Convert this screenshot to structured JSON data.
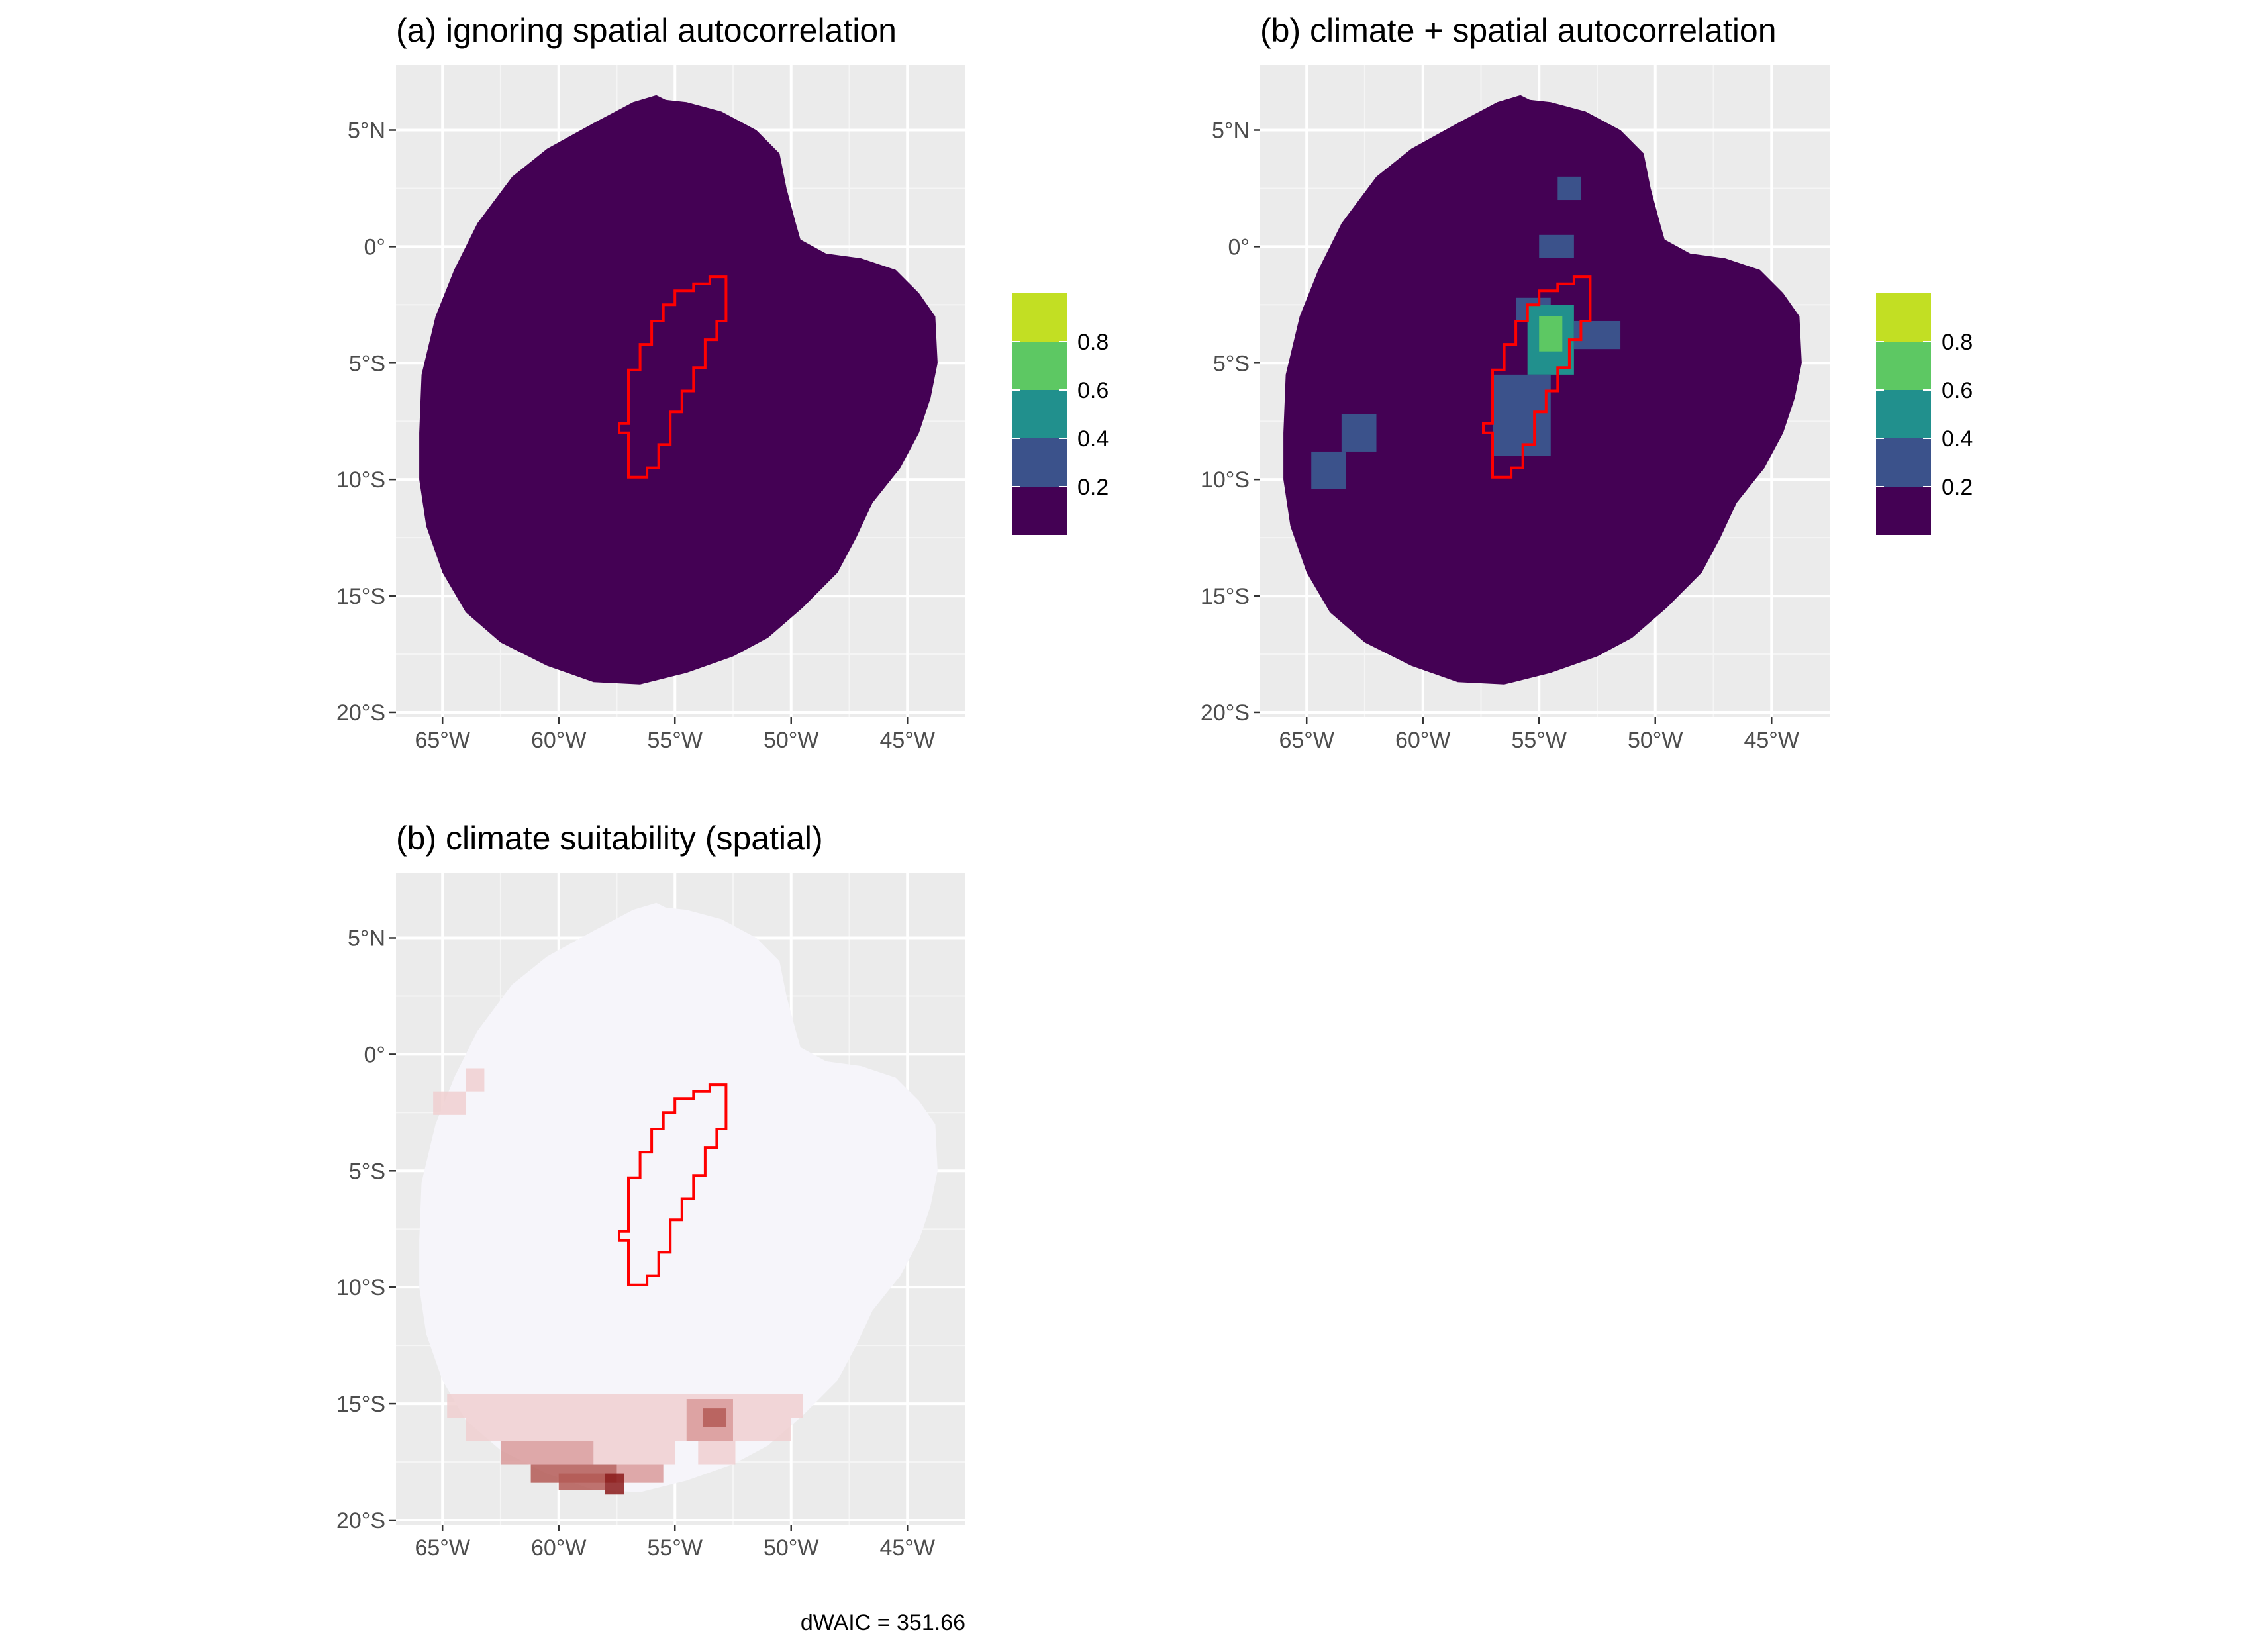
{
  "chart_data": [
    {
      "type": "heatmap",
      "title": "(a) ignoring spatial autocorrelation",
      "xlim": [
        -67,
        -42.5
      ],
      "ylim": [
        -20.2,
        7.8
      ],
      "x_ticks": [
        {
          "value": -65,
          "label": "65°W"
        },
        {
          "value": -60,
          "label": "60°W"
        },
        {
          "value": -55,
          "label": "55°W"
        },
        {
          "value": -50,
          "label": "50°W"
        },
        {
          "value": -45,
          "label": "45°W"
        }
      ],
      "y_ticks": [
        {
          "value": 5,
          "label": "5°N"
        },
        {
          "value": 0,
          "label": "0°"
        },
        {
          "value": -5,
          "label": "5°S"
        },
        {
          "value": -10,
          "label": "10°S"
        },
        {
          "value": -15,
          "label": "15°S"
        },
        {
          "value": -20,
          "label": "20°S"
        }
      ],
      "fill": "#440154",
      "grid": true,
      "legend": {
        "position": "right",
        "colors": [
          "#440154",
          "#3b528b",
          "#21908d",
          "#5dc863",
          "#c2df23"
        ],
        "labels": [
          "0.2",
          "0.4",
          "0.6",
          "0.8"
        ]
      },
      "outline_color": "#ff0000"
    },
    {
      "type": "heatmap",
      "title": "(b) climate + spatial autocorrelation",
      "xlim": [
        -67,
        -42.5
      ],
      "ylim": [
        -20.2,
        7.8
      ],
      "x_ticks": [
        {
          "value": -65,
          "label": "65°W"
        },
        {
          "value": -60,
          "label": "60°W"
        },
        {
          "value": -55,
          "label": "55°W"
        },
        {
          "value": -50,
          "label": "50°W"
        },
        {
          "value": -45,
          "label": "45°W"
        }
      ],
      "y_ticks": [
        {
          "value": 5,
          "label": "5°N"
        },
        {
          "value": 0,
          "label": "0°"
        },
        {
          "value": -5,
          "label": "5°S"
        },
        {
          "value": -10,
          "label": "10°S"
        },
        {
          "value": -15,
          "label": "15°S"
        },
        {
          "value": -20,
          "label": "20°S"
        }
      ],
      "fill": "#440154",
      "grid": true,
      "legend": {
        "position": "right",
        "colors": [
          "#440154",
          "#3b528b",
          "#21908d",
          "#5dc863",
          "#c2df23"
        ],
        "labels": [
          "0.2",
          "0.4",
          "0.6",
          "0.8"
        ]
      },
      "outline_color": "#ff0000",
      "patches": [
        {
          "lon": [
            -54.2,
            -53.2
          ],
          "lat": [
            3.0,
            2.0
          ],
          "class": "0.2-0.4"
        },
        {
          "lon": [
            -55.0,
            -53.5
          ],
          "lat": [
            0.5,
            -0.5
          ],
          "class": "0.2-0.4"
        },
        {
          "lon": [
            -56.0,
            -54.5
          ],
          "lat": [
            -2.2,
            -3.2
          ],
          "class": "0.2-0.4"
        },
        {
          "lon": [
            -55.5,
            -53.5
          ],
          "lat": [
            -2.5,
            -5.5
          ],
          "class": "0.4-0.6"
        },
        {
          "lon": [
            -55.0,
            -54.0
          ],
          "lat": [
            -3.0,
            -4.5
          ],
          "class": "0.6-0.8"
        },
        {
          "lon": [
            -53.5,
            -51.5
          ],
          "lat": [
            -3.2,
            -4.4
          ],
          "class": "0.2-0.4"
        },
        {
          "lon": [
            -57.0,
            -54.5
          ],
          "lat": [
            -5.5,
            -9.0
          ],
          "class": "0.2-0.4"
        },
        {
          "lon": [
            -63.5,
            -62.0
          ],
          "lat": [
            -7.2,
            -8.8
          ],
          "class": "0.2-0.4"
        },
        {
          "lon": [
            -64.8,
            -63.3
          ],
          "lat": [
            -8.8,
            -10.4
          ],
          "class": "0.2-0.4"
        }
      ]
    },
    {
      "type": "heatmap",
      "title": "(b) climate suitability (spatial)",
      "xlim": [
        -67,
        -42.5
      ],
      "ylim": [
        -20.2,
        7.8
      ],
      "x_ticks": [
        {
          "value": -65,
          "label": "65°W"
        },
        {
          "value": -60,
          "label": "60°W"
        },
        {
          "value": -55,
          "label": "55°W"
        },
        {
          "value": -50,
          "label": "50°W"
        },
        {
          "value": -45,
          "label": "45°W"
        }
      ],
      "y_ticks": [
        {
          "value": 5,
          "label": "5°N"
        },
        {
          "value": 0,
          "label": "0°"
        },
        {
          "value": -5,
          "label": "5°S"
        },
        {
          "value": -10,
          "label": "10°S"
        },
        {
          "value": -15,
          "label": "15°S"
        },
        {
          "value": -20,
          "label": "20°S"
        }
      ],
      "fill": "#f6f5fa",
      "grid": true,
      "outline_color": "#ff0000",
      "warm_colors": [
        "#f0cfd0",
        "#d99a9a",
        "#b45a56",
        "#8b1a1a"
      ],
      "annotation": "dWAIC = 351.66"
    }
  ]
}
